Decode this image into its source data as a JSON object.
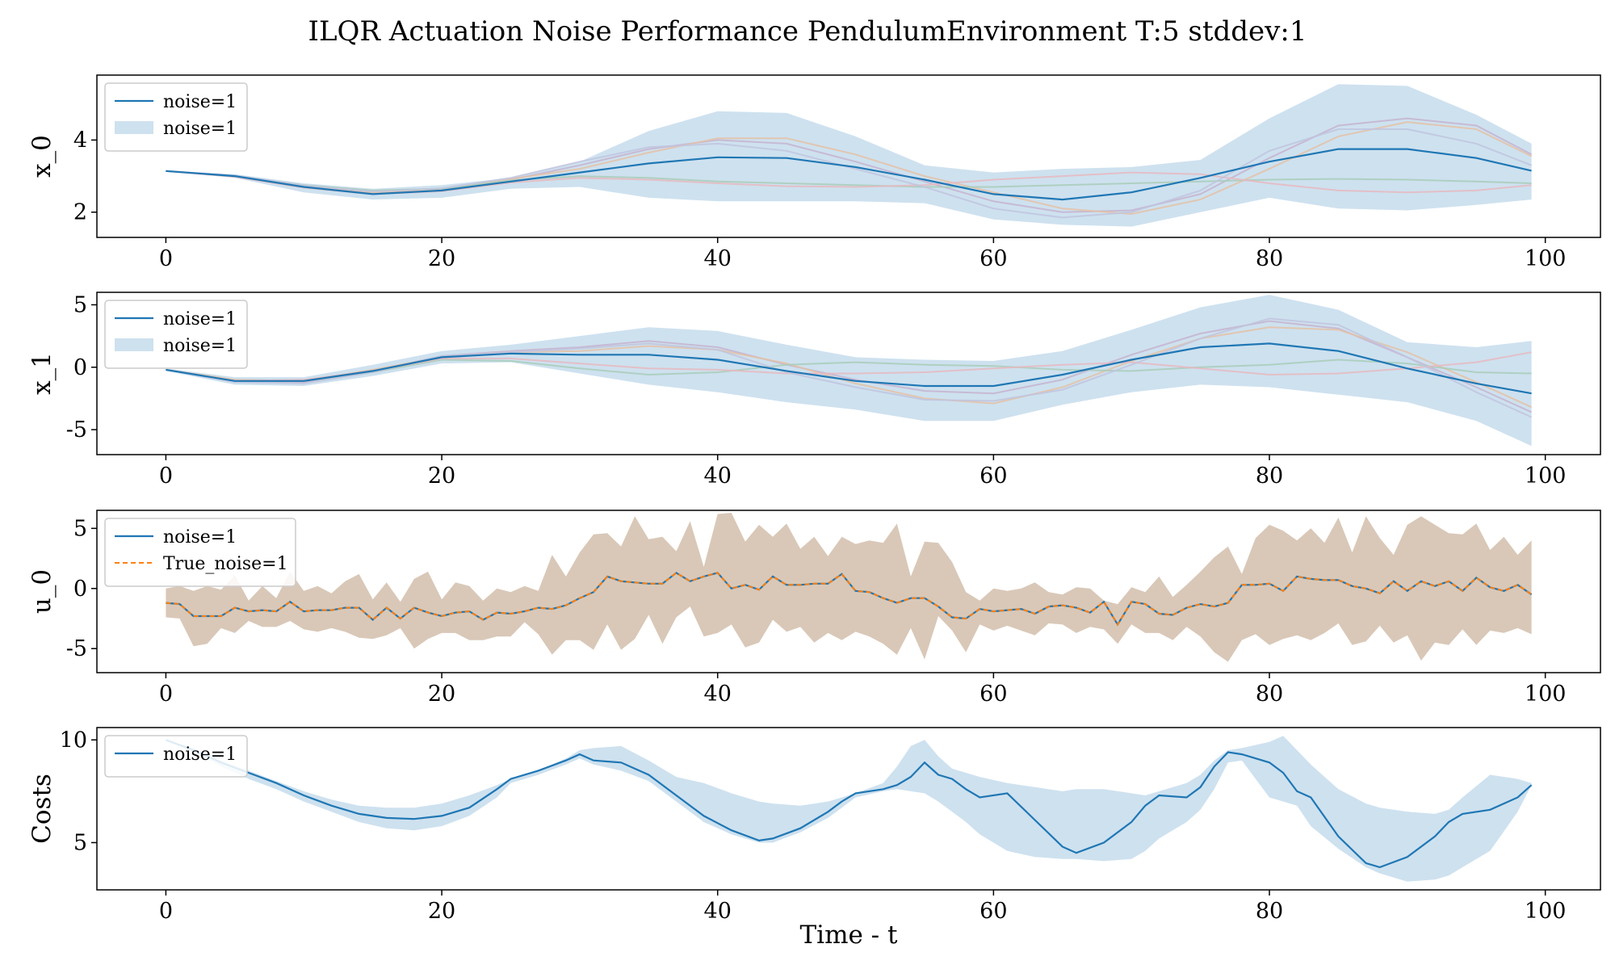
{
  "figure": {
    "title": "ILQR Actuation Noise Performance PendulumEnvironment T:5 stddev:1",
    "xlabel": "Time - t"
  },
  "colors": {
    "mean": "#1f77b4",
    "band": "#a6c8e2",
    "true": "#ff7f0e",
    "band_u": "#d9c8b8",
    "samples": [
      "#c6b3cf",
      "#e4c1a4",
      "#a8cdb8",
      "#e6b9bf",
      "#bfc4de"
    ]
  },
  "chart_data": [
    {
      "type": "line",
      "ylabel": "x_0",
      "xlim": [
        -5,
        104
      ],
      "ylim": [
        1.3,
        5.8
      ],
      "xticks": [
        0,
        20,
        40,
        60,
        80,
        100
      ],
      "yticks": [
        2,
        4
      ],
      "legend": {
        "placement": "top-left",
        "entries": [
          {
            "label": "noise=1",
            "kind": "line"
          },
          {
            "label": "noise=1",
            "kind": "band"
          }
        ]
      },
      "x": [
        0,
        5,
        10,
        15,
        20,
        25,
        30,
        35,
        40,
        45,
        50,
        55,
        60,
        65,
        70,
        75,
        80,
        85,
        90,
        95,
        99
      ],
      "mean": [
        3.14,
        3.0,
        2.7,
        2.5,
        2.6,
        2.85,
        3.1,
        3.35,
        3.52,
        3.5,
        3.25,
        2.9,
        2.5,
        2.35,
        2.55,
        2.95,
        3.4,
        3.75,
        3.75,
        3.5,
        3.15
      ],
      "band_upper": [
        3.14,
        3.05,
        2.8,
        2.65,
        2.75,
        2.95,
        3.4,
        4.25,
        4.8,
        4.75,
        4.1,
        3.3,
        3.1,
        3.2,
        3.25,
        3.45,
        4.6,
        5.55,
        5.5,
        4.7,
        3.9
      ],
      "band_lower": [
        3.14,
        2.95,
        2.55,
        2.35,
        2.4,
        2.65,
        2.7,
        2.4,
        2.3,
        2.3,
        2.3,
        2.25,
        1.8,
        1.65,
        1.6,
        2.0,
        2.4,
        2.1,
        2.05,
        2.2,
        2.35
      ],
      "samples": [
        [
          3.14,
          3.0,
          2.72,
          2.52,
          2.6,
          2.9,
          3.3,
          3.75,
          4.0,
          3.9,
          3.4,
          2.85,
          2.3,
          2.0,
          2.05,
          2.5,
          3.5,
          4.4,
          4.6,
          4.4,
          3.6
        ],
        [
          3.14,
          3.0,
          2.7,
          2.55,
          2.62,
          2.92,
          3.2,
          3.65,
          4.05,
          4.05,
          3.6,
          3.0,
          2.55,
          2.1,
          1.95,
          2.35,
          3.2,
          4.1,
          4.5,
          4.3,
          3.55
        ],
        [
          3.14,
          3.0,
          2.75,
          2.6,
          2.65,
          2.88,
          3.0,
          2.95,
          2.85,
          2.8,
          2.75,
          2.7,
          2.7,
          2.75,
          2.8,
          2.85,
          2.9,
          2.92,
          2.9,
          2.85,
          2.8
        ],
        [
          3.14,
          2.98,
          2.68,
          2.5,
          2.58,
          2.82,
          2.95,
          2.9,
          2.8,
          2.72,
          2.7,
          2.75,
          2.9,
          3.0,
          3.1,
          3.05,
          2.8,
          2.6,
          2.55,
          2.6,
          2.75
        ],
        [
          3.14,
          3.02,
          2.74,
          2.57,
          2.66,
          2.95,
          3.4,
          3.8,
          3.9,
          3.7,
          3.2,
          2.7,
          2.1,
          1.85,
          2.0,
          2.6,
          3.7,
          4.3,
          4.3,
          3.9,
          3.3
        ]
      ]
    },
    {
      "type": "line",
      "ylabel": "x_1",
      "xlim": [
        -5,
        104
      ],
      "ylim": [
        -7,
        6
      ],
      "xticks": [
        0,
        20,
        40,
        60,
        80,
        100
      ],
      "yticks": [
        -5,
        0,
        5
      ],
      "legend": {
        "placement": "top-left",
        "entries": [
          {
            "label": "noise=1",
            "kind": "line"
          },
          {
            "label": "noise=1",
            "kind": "band"
          }
        ]
      },
      "x": [
        0,
        5,
        10,
        15,
        20,
        25,
        30,
        35,
        40,
        45,
        50,
        55,
        60,
        65,
        70,
        75,
        80,
        85,
        90,
        95,
        99
      ],
      "mean": [
        -0.2,
        -1.1,
        -1.1,
        -0.3,
        0.8,
        1.1,
        1.0,
        1.0,
        0.6,
        -0.3,
        -1.1,
        -1.5,
        -1.5,
        -0.6,
        0.6,
        1.6,
        1.9,
        1.3,
        -0.1,
        -1.3,
        -2.1
      ],
      "band_upper": [
        -0.1,
        -0.8,
        -0.8,
        0.2,
        1.3,
        1.8,
        2.5,
        3.2,
        2.9,
        1.8,
        0.8,
        0.6,
        0.5,
        1.3,
        3.0,
        4.8,
        5.8,
        4.6,
        2.0,
        1.6,
        2.1
      ],
      "band_lower": [
        -0.3,
        -1.4,
        -1.5,
        -0.7,
        0.3,
        0.4,
        -0.5,
        -1.4,
        -2.0,
        -2.8,
        -3.4,
        -4.3,
        -4.3,
        -3.0,
        -2.0,
        -1.4,
        -1.6,
        -2.2,
        -2.8,
        -4.3,
        -6.3
      ],
      "samples": [
        [
          -0.2,
          -1.1,
          -1.2,
          -0.3,
          0.9,
          1.3,
          1.6,
          2.1,
          1.6,
          0.2,
          -1.0,
          -1.9,
          -2.1,
          -1.0,
          1.0,
          2.7,
          3.7,
          3.1,
          0.8,
          -1.6,
          -3.6
        ],
        [
          -0.2,
          -1.0,
          -1.1,
          -0.2,
          0.8,
          1.2,
          1.3,
          1.7,
          1.4,
          0.3,
          -1.3,
          -2.5,
          -2.9,
          -1.6,
          0.5,
          2.3,
          3.2,
          3.0,
          1.2,
          -1.2,
          -3.2
        ],
        [
          -0.2,
          -1.1,
          -1.1,
          -0.4,
          0.6,
          0.5,
          -0.1,
          -0.6,
          -0.4,
          0.2,
          0.4,
          0.2,
          0.1,
          -0.2,
          -0.3,
          0.0,
          0.2,
          0.6,
          0.3,
          -0.4,
          -0.5
        ],
        [
          -0.2,
          -1.1,
          -1.0,
          -0.3,
          0.7,
          0.7,
          0.3,
          -0.1,
          -0.2,
          -0.5,
          -0.5,
          -0.4,
          -0.1,
          0.2,
          0.4,
          -0.1,
          -0.6,
          -0.5,
          -0.1,
          0.4,
          1.2
        ],
        [
          -0.2,
          -1.2,
          -1.3,
          -0.4,
          0.9,
          1.2,
          1.5,
          1.9,
          1.4,
          -0.4,
          -1.6,
          -2.6,
          -2.7,
          -1.8,
          0.2,
          2.3,
          3.9,
          3.4,
          0.8,
          -2.0,
          -4.0
        ]
      ]
    },
    {
      "type": "line",
      "ylabel": "u_0",
      "xlim": [
        -5,
        104
      ],
      "ylim": [
        -7,
        6.5
      ],
      "xticks": [
        0,
        20,
        40,
        60,
        80,
        100
      ],
      "yticks": [
        -5,
        0,
        5
      ],
      "legend": {
        "placement": "top-left",
        "entries": [
          {
            "label": "noise=1",
            "kind": "line"
          },
          {
            "label": "True_noise=1",
            "kind": "dashed"
          }
        ]
      },
      "x": [
        0,
        1,
        2,
        3,
        4,
        5,
        6,
        7,
        8,
        9,
        10,
        11,
        12,
        13,
        14,
        15,
        16,
        17,
        18,
        19,
        20,
        21,
        22,
        23,
        24,
        25,
        26,
        27,
        28,
        29,
        30,
        31,
        32,
        33,
        34,
        35,
        36,
        37,
        38,
        39,
        40,
        41,
        42,
        43,
        44,
        45,
        46,
        47,
        48,
        49,
        50,
        51,
        52,
        53,
        54,
        55,
        56,
        57,
        58,
        59,
        60,
        61,
        62,
        63,
        64,
        65,
        66,
        67,
        68,
        69,
        70,
        71,
        72,
        73,
        74,
        75,
        76,
        77,
        78,
        79,
        80,
        81,
        82,
        83,
        84,
        85,
        86,
        87,
        88,
        89,
        90,
        91,
        92,
        93,
        94,
        95,
        96,
        97,
        98,
        99
      ],
      "mean": [
        -1.2,
        -1.3,
        -2.3,
        -2.3,
        -2.3,
        -1.6,
        -1.9,
        -1.8,
        -1.9,
        -1.1,
        -1.9,
        -1.8,
        -1.8,
        -1.6,
        -1.6,
        -2.6,
        -1.6,
        -2.5,
        -1.6,
        -2.0,
        -2.3,
        -2.0,
        -1.9,
        -2.6,
        -2.0,
        -2.1,
        -1.9,
        -1.6,
        -1.7,
        -1.4,
        -0.8,
        -0.3,
        1.0,
        0.6,
        0.5,
        0.4,
        0.4,
        1.3,
        0.6,
        1.0,
        1.3,
        0.0,
        0.3,
        -0.1,
        1.0,
        0.3,
        0.3,
        0.4,
        0.4,
        1.2,
        -0.2,
        -0.3,
        -0.8,
        -1.2,
        -0.8,
        -0.8,
        -1.5,
        -2.4,
        -2.5,
        -1.7,
        -1.9,
        -1.8,
        -1.7,
        -2.1,
        -1.5,
        -1.4,
        -1.6,
        -2.0,
        -1.1,
        -3.0,
        -1.1,
        -1.3,
        -2.1,
        -2.2,
        -1.6,
        -1.3,
        -1.5,
        -1.2,
        0.3,
        0.3,
        0.4,
        -0.2,
        1.0,
        0.8,
        0.7,
        0.7,
        0.2,
        0.0,
        -0.4,
        0.6,
        -0.2,
        0.6,
        0.2,
        0.6,
        -0.2,
        0.9,
        0.1,
        -0.2,
        0.3,
        -0.5
      ],
      "band_upper": [
        0.0,
        0.2,
        -0.2,
        0.2,
        -0.1,
        1.1,
        -1.0,
        0.2,
        -0.8,
        1.4,
        -0.2,
        0.2,
        -0.4,
        0.6,
        1.2,
        -0.9,
        0.5,
        -1.1,
        0.8,
        1.4,
        -0.9,
        0.5,
        0.2,
        -1.0,
        0.0,
        -0.3,
        0.2,
        -0.2,
        2.8,
        1.0,
        3.0,
        4.5,
        4.6,
        3.5,
        6.0,
        4.1,
        4.3,
        3.1,
        5.6,
        1.8,
        6.2,
        6.3,
        3.9,
        5.3,
        4.3,
        5.4,
        3.3,
        4.3,
        2.7,
        4.3,
        3.7,
        4.0,
        3.8,
        5.4,
        1.0,
        3.9,
        3.8,
        2.2,
        -0.3,
        -1.0,
        0.0,
        -0.2,
        0.0,
        0.5,
        -0.3,
        -0.5,
        0.1,
        0.0,
        -1.0,
        -1.3,
        0.1,
        -0.3,
        1.0,
        -0.7,
        0.3,
        1.4,
        2.6,
        3.5,
        1.2,
        4.2,
        5.3,
        4.8,
        4.0,
        5.0,
        3.8,
        5.9,
        3.0,
        6.0,
        4.2,
        2.8,
        5.3,
        6.0,
        5.3,
        4.6,
        4.5,
        5.4,
        3.2,
        4.3,
        2.8,
        4.0,
        2.6
      ],
      "band_lower": [
        -2.4,
        -2.5,
        -4.8,
        -4.6,
        -3.3,
        -3.7,
        -2.7,
        -3.2,
        -3.2,
        -2.7,
        -3.4,
        -3.6,
        -3.3,
        -3.6,
        -4.1,
        -4.2,
        -3.9,
        -3.3,
        -5.0,
        -4.2,
        -3.7,
        -3.7,
        -4.3,
        -4.3,
        -4.0,
        -4.0,
        -2.8,
        -3.8,
        -5.5,
        -4.3,
        -4.3,
        -5.1,
        -3.0,
        -5.1,
        -4.2,
        -2.2,
        -4.6,
        -2.4,
        -1.5,
        -4.0,
        -3.7,
        -3.0,
        -4.9,
        -4.5,
        -2.6,
        -3.6,
        -3.2,
        -4.5,
        -3.7,
        -4.3,
        -3.6,
        -4.0,
        -4.6,
        -5.5,
        -3.3,
        -5.9,
        -2.3,
        -3.5,
        -5.3,
        -3.0,
        -3.5,
        -3.1,
        -3.5,
        -3.9,
        -2.9,
        -3.0,
        -3.7,
        -3.2,
        -3.4,
        -4.6,
        -3.0,
        -3.7,
        -3.7,
        -4.3,
        -3.2,
        -4.0,
        -5.3,
        -6.1,
        -4.3,
        -3.8,
        -4.7,
        -4.2,
        -3.9,
        -4.3,
        -3.7,
        -2.9,
        -4.7,
        -4.4,
        -3.1,
        -4.5,
        -3.9,
        -6.0,
        -4.5,
        -4.7,
        -3.4,
        -4.7,
        -3.5,
        -3.7,
        -3.3,
        -3.8
      ]
    },
    {
      "type": "line",
      "ylabel": "Costs",
      "xlim": [
        -5,
        104
      ],
      "ylim": [
        2.7,
        10.6
      ],
      "xticks": [
        0,
        20,
        40,
        60,
        80,
        100
      ],
      "yticks": [
        5,
        10
      ],
      "legend": {
        "placement": "top-left",
        "entries": [
          {
            "label": "noise=1",
            "kind": "line"
          }
        ]
      },
      "x": [
        0,
        2,
        4,
        6,
        8,
        10,
        12,
        14,
        16,
        18,
        20,
        22,
        24,
        25,
        27,
        29,
        30,
        31,
        33,
        35,
        37,
        39,
        41,
        43,
        44,
        46,
        48,
        49,
        50,
        52,
        53,
        54,
        55,
        56,
        57,
        58,
        59,
        61,
        63,
        65,
        66,
        68,
        70,
        71,
        72,
        74,
        75,
        76,
        77,
        78,
        80,
        81,
        82,
        83,
        85,
        87,
        88,
        90,
        92,
        93,
        94,
        96,
        98,
        99
      ],
      "mean": [
        10.0,
        9.5,
        8.9,
        8.4,
        7.9,
        7.3,
        6.8,
        6.4,
        6.2,
        6.15,
        6.3,
        6.7,
        7.6,
        8.1,
        8.5,
        9.0,
        9.3,
        9.0,
        8.9,
        8.3,
        7.3,
        6.3,
        5.6,
        5.1,
        5.2,
        5.7,
        6.5,
        7.0,
        7.4,
        7.6,
        7.8,
        8.2,
        8.9,
        8.3,
        8.1,
        7.6,
        7.2,
        7.4,
        6.1,
        4.8,
        4.5,
        5.0,
        6.0,
        6.8,
        7.3,
        7.2,
        7.7,
        8.7,
        9.4,
        9.3,
        8.9,
        8.4,
        7.5,
        7.2,
        5.3,
        4.0,
        3.8,
        4.3,
        5.3,
        6.0,
        6.4,
        6.6,
        7.2,
        7.8
      ],
      "band_upper": [
        10.0,
        9.6,
        9.0,
        8.5,
        8.0,
        7.5,
        7.1,
        6.8,
        6.7,
        6.7,
        6.9,
        7.3,
        7.8,
        8.1,
        8.5,
        9.1,
        9.5,
        9.6,
        9.7,
        9.0,
        8.2,
        7.9,
        7.4,
        7.0,
        6.9,
        6.8,
        7.0,
        7.2,
        7.4,
        7.9,
        8.7,
        9.7,
        10.0,
        9.2,
        8.6,
        8.4,
        8.2,
        7.9,
        7.7,
        7.5,
        7.6,
        7.6,
        7.4,
        7.3,
        7.5,
        7.9,
        8.3,
        9.0,
        9.5,
        9.6,
        9.9,
        10.2,
        9.5,
        8.8,
        7.6,
        6.9,
        6.7,
        6.5,
        6.4,
        6.6,
        7.2,
        8.3,
        8.1,
        7.9
      ],
      "band_lower": [
        10.0,
        9.4,
        8.7,
        8.1,
        7.6,
        7.0,
        6.5,
        6.0,
        5.7,
        5.6,
        5.8,
        6.3,
        7.2,
        7.9,
        8.3,
        8.8,
        9.1,
        8.8,
        8.5,
        8.0,
        7.0,
        6.0,
        5.4,
        5.0,
        5.0,
        5.5,
        6.2,
        6.7,
        7.2,
        7.5,
        7.6,
        7.5,
        7.4,
        7.0,
        6.5,
        6.0,
        5.4,
        4.6,
        4.3,
        4.2,
        4.2,
        4.1,
        4.2,
        4.6,
        5.2,
        6.0,
        6.6,
        7.6,
        8.9,
        9.0,
        7.2,
        7.0,
        6.8,
        5.8,
        4.7,
        3.8,
        3.5,
        3.1,
        3.2,
        3.4,
        3.8,
        4.6,
        6.5,
        7.8
      ]
    }
  ]
}
